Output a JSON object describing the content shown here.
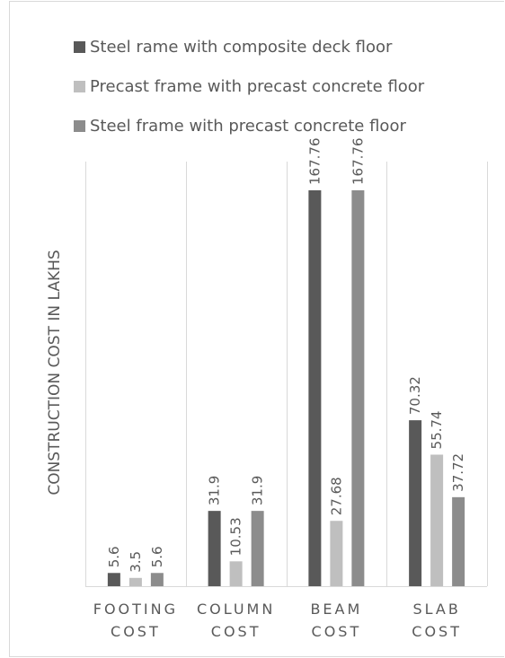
{
  "chart_data": {
    "type": "bar",
    "categories": [
      "FOOTING COST",
      "COLUMN COST",
      "BEAM COST",
      "SLAB COST"
    ],
    "series": [
      {
        "name": "Steel rame with composite deck floor",
        "values": [
          5.6,
          31.9,
          167.76,
          70.32
        ],
        "color": "#595959"
      },
      {
        "name": "Precast frame with precast concrete floor",
        "values": [
          3.5,
          10.53,
          27.68,
          55.74
        ],
        "color": "#bfbfbf"
      },
      {
        "name": "Steel frame with precast concrete floor",
        "values": [
          5.6,
          31.9,
          167.76,
          37.72
        ],
        "color": "#8c8c8c"
      }
    ],
    "ylabel": "CONSTRUCTION COST IN LAKHS",
    "ylim": [
      0,
      167.76
    ],
    "data_labels": true,
    "legend": "top",
    "grid": "vertical category separators"
  }
}
